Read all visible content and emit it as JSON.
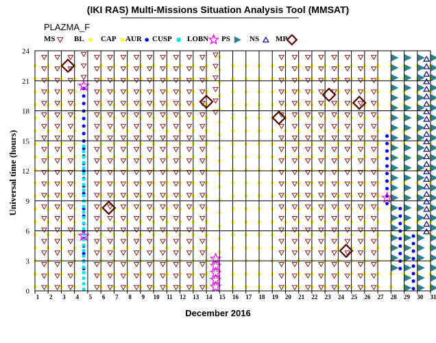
{
  "chart_data": {
    "type": "scatter",
    "title": "(IKI RAS) Multi-Missions Situation Analysis Tool (MMSAT)",
    "subtitle": "PLAZMA_F",
    "xlabel": "December 2016",
    "ylabel": "Universal time (hours)",
    "xlim": [
      1,
      31
    ],
    "ylim": [
      0,
      24
    ],
    "x_ticks": [
      "1",
      "2",
      "3",
      "4",
      "5",
      "6",
      "7",
      "8",
      "9",
      "10",
      "11",
      "12",
      "13",
      "14",
      "15",
      "16",
      "17",
      "18",
      "19",
      "20",
      "21",
      "22",
      "23",
      "24",
      "25",
      "26",
      "27",
      "28",
      "29",
      "30",
      "31"
    ],
    "y_ticks": [
      "0",
      "3",
      "6",
      "9",
      "12",
      "15",
      "18",
      "21",
      "24"
    ],
    "grid": true,
    "legend_position": "top",
    "legend": [
      {
        "key": "MS",
        "label": "MS"
      },
      {
        "key": "BL",
        "label": "BL"
      },
      {
        "key": "CAP",
        "label": "CAP"
      },
      {
        "key": "AUR",
        "label": "AUR"
      },
      {
        "key": "CUSP",
        "label": "CUSP"
      },
      {
        "key": "LOBN",
        "label": "LOBN"
      },
      {
        "key": "PS",
        "label": "PS"
      },
      {
        "key": "NS",
        "label": "NS"
      },
      {
        "key": "MP",
        "label": "MP"
      }
    ],
    "styles": {
      "MS": {
        "shape": "triangle-down",
        "color": "#8b1a1a"
      },
      "BL": {
        "shape": "circle",
        "color": "#ffff00"
      },
      "CAP": {
        "shape": "circle",
        "color": "#ffff00"
      },
      "AUR": {
        "shape": "circle",
        "color": "#0000ff"
      },
      "CUSP": {
        "shape": "square",
        "color": "#00e5e5"
      },
      "LOBN": {
        "shape": "star",
        "color": "#ff00ff"
      },
      "PS": {
        "shape": "flag",
        "color": "#2a7f8f"
      },
      "NS": {
        "shape": "triangle-up",
        "color": "#00008b"
      },
      "MP": {
        "shape": "diamond",
        "color": "#5a0000"
      }
    },
    "series": [
      {
        "key": "MS",
        "segments": [
          [
            1.7,
            0,
            24
          ],
          [
            2.7,
            0,
            24
          ],
          [
            3.7,
            0,
            24
          ],
          [
            4.7,
            21,
            24
          ],
          [
            5.7,
            0,
            24
          ],
          [
            6.7,
            0,
            24
          ],
          [
            7.7,
            0,
            24
          ],
          [
            8.7,
            0,
            24
          ],
          [
            9.7,
            0,
            24
          ],
          [
            10.7,
            0,
            24
          ],
          [
            11.7,
            0,
            24
          ],
          [
            12.7,
            0,
            24
          ],
          [
            13.7,
            0,
            24
          ],
          [
            14.7,
            17.5,
            24
          ],
          [
            19.7,
            0,
            24
          ],
          [
            20.7,
            0,
            24
          ],
          [
            21.7,
            0,
            24
          ],
          [
            22.7,
            0,
            24
          ],
          [
            23.7,
            0,
            24
          ],
          [
            24.7,
            0,
            24
          ],
          [
            25.7,
            0,
            24
          ],
          [
            26.7,
            0,
            24
          ]
        ]
      },
      {
        "key": "BL",
        "segments": [
          [
            1.0,
            0,
            24
          ],
          [
            2.0,
            0,
            24
          ],
          [
            3.0,
            0,
            24
          ],
          [
            4.0,
            0,
            24
          ],
          [
            6.0,
            0,
            24
          ],
          [
            7.0,
            0,
            24
          ],
          [
            8.0,
            0,
            24
          ],
          [
            9.0,
            0,
            24
          ],
          [
            10.0,
            0,
            24
          ],
          [
            11.0,
            0,
            24
          ],
          [
            12.0,
            0,
            24
          ],
          [
            13.0,
            0,
            24
          ],
          [
            14.0,
            0,
            24
          ],
          [
            15.0,
            3.5,
            24
          ],
          [
            16.0,
            0,
            24
          ],
          [
            17.0,
            0,
            24
          ],
          [
            18.0,
            0,
            24
          ],
          [
            19.0,
            0,
            24
          ],
          [
            20.0,
            0,
            24
          ],
          [
            21.0,
            0,
            24
          ],
          [
            22.0,
            0,
            24
          ],
          [
            23.0,
            0,
            24
          ],
          [
            24.0,
            0,
            24
          ],
          [
            25.0,
            0,
            24
          ],
          [
            26.0,
            0,
            24
          ],
          [
            27.0,
            0,
            24
          ],
          [
            28.0,
            0,
            24
          ],
          [
            29.0,
            0,
            24
          ],
          [
            30.0,
            0,
            24
          ],
          [
            31.0,
            0,
            24
          ]
        ]
      },
      {
        "key": "AUR",
        "segments": [
          [
            4.7,
            2,
            20.5
          ],
          [
            27.7,
            8.5,
            16
          ],
          [
            28.7,
            2,
            9
          ],
          [
            29.7,
            0,
            6
          ]
        ]
      },
      {
        "key": "CUSP",
        "segments": [
          [
            4.7,
            0,
            15
          ]
        ]
      },
      {
        "key": "PS",
        "segments": [
          [
            28.3,
            2,
            24
          ],
          [
            29.3,
            0,
            24
          ],
          [
            30.3,
            0,
            24
          ],
          [
            31.3,
            0,
            24
          ]
        ]
      },
      {
        "key": "NS",
        "segments": [
          [
            30.7,
            5.7,
            24
          ],
          [
            31.7,
            0,
            11.5
          ]
        ]
      },
      {
        "key": "LOBN",
        "points": [
          [
            4.7,
            20.5
          ],
          [
            4.7,
            5.5
          ],
          [
            27.7,
            9.3
          ],
          [
            14.7,
            3.2
          ],
          [
            14.7,
            2.5
          ],
          [
            14.7,
            1.8
          ],
          [
            14.7,
            1.1
          ],
          [
            14.7,
            0.4
          ]
        ]
      },
      {
        "key": "MP",
        "points": [
          [
            3.5,
            22.5
          ],
          [
            6.6,
            8.3
          ],
          [
            14.0,
            18.9
          ],
          [
            19.5,
            17.3
          ],
          [
            23.3,
            19.6
          ],
          [
            24.6,
            4.0
          ],
          [
            25.6,
            18.8
          ]
        ]
      }
    ]
  }
}
